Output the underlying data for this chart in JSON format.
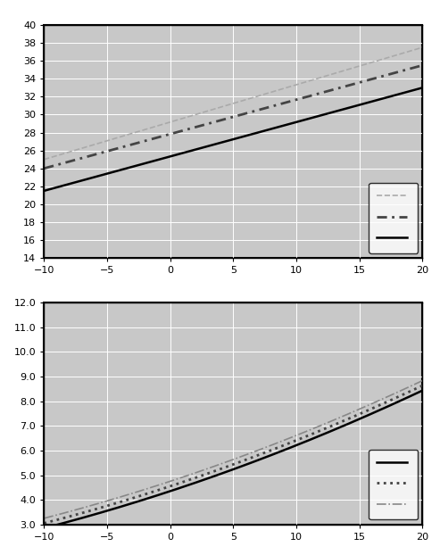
{
  "chart1": {
    "line1_x": [
      -10,
      20
    ],
    "line1_y": [
      25.0,
      37.5
    ],
    "line2_x": [
      -10,
      20
    ],
    "line2_y": [
      24.0,
      35.5
    ],
    "line3_x": [
      -10,
      20
    ],
    "line3_y": [
      21.5,
      33.0
    ],
    "ylim": [
      14,
      40
    ],
    "yticks": [
      14,
      16,
      18,
      20,
      22,
      24,
      26,
      28,
      30,
      32,
      34,
      36,
      38,
      40
    ],
    "xlim": [
      -10,
      20
    ],
    "xticks": [
      -10,
      -5,
      0,
      5,
      10,
      15,
      20
    ],
    "line1_style": {
      "color": "#aaaaaa",
      "linestyle": "--",
      "linewidth": 1.2
    },
    "line2_style": {
      "color": "#444444",
      "linestyle": "--",
      "linewidth": 2.0,
      "dashes": [
        4,
        2,
        1,
        2
      ]
    },
    "line3_style": {
      "color": "#000000",
      "linestyle": "-",
      "linewidth": 1.8
    },
    "bg_color": "#c8c8c8"
  },
  "chart2": {
    "line1_coeffs": [
      4.35,
      0.168,
      0.0018
    ],
    "line2_coeffs": [
      4.55,
      0.168,
      0.0018
    ],
    "line3_coeffs": [
      4.75,
      0.168,
      0.0018
    ],
    "ylim": [
      3.0,
      12.0
    ],
    "yticks": [
      3.0,
      4.0,
      5.0,
      6.0,
      7.0,
      8.0,
      9.0,
      10.0,
      11.0,
      12.0
    ],
    "xlim": [
      -10,
      20
    ],
    "xticks": [
      -10,
      -5,
      0,
      5,
      10,
      15,
      20
    ],
    "line1_style": {
      "color": "#000000",
      "linestyle": "-",
      "linewidth": 1.8
    },
    "line2_style": {
      "color": "#444444",
      "linestyle": ":",
      "linewidth": 2.0
    },
    "line3_style": {
      "color": "#888888",
      "linestyle": "-.",
      "linewidth": 1.2
    },
    "bg_color": "#c8c8c8"
  },
  "fig_bg": "#ffffff",
  "box_edge_color": "#000000",
  "tick_fontsize": 8,
  "grid_color": "#ffffff",
  "grid_lw": 0.7
}
